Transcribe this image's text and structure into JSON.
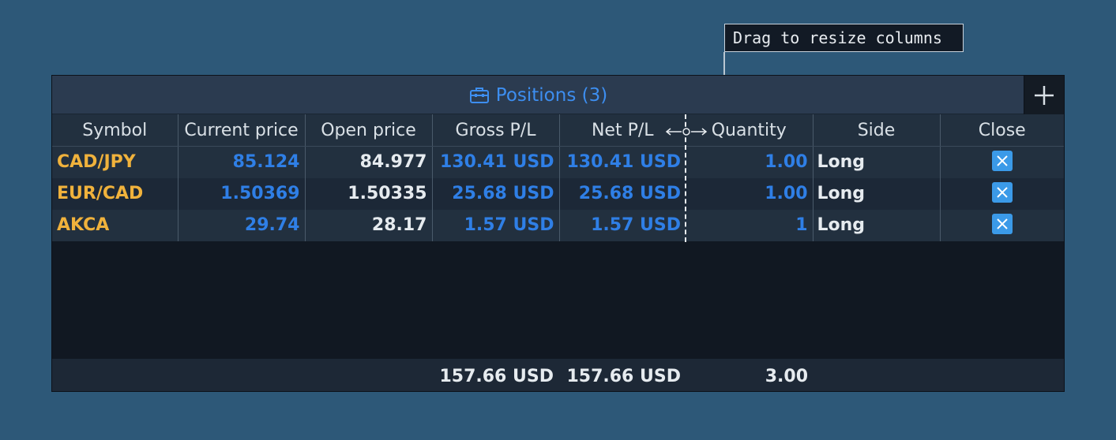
{
  "tooltip": {
    "text": "Drag to resize columns"
  },
  "panel": {
    "title": "Positions (3)",
    "title_icon": "briefcase-icon",
    "add_icon": "plus-icon"
  },
  "columns": [
    "Symbol",
    "Current price",
    "Open price",
    "Gross P/L",
    "Net P/L",
    "Quantity",
    "Side",
    "Close"
  ],
  "rows": [
    {
      "symbol": "CAD/JPY",
      "current_price": "85.124",
      "open_price": "84.977",
      "gross_pl": "130.41 USD",
      "net_pl": "130.41 USD",
      "quantity": "1.00",
      "side": "Long"
    },
    {
      "symbol": "EUR/CAD",
      "current_price": "1.50369",
      "open_price": "1.50335",
      "gross_pl": "25.68 USD",
      "net_pl": "25.68 USD",
      "quantity": "1.00",
      "side": "Long"
    },
    {
      "symbol": "AKCA",
      "current_price": "29.74",
      "open_price": "28.17",
      "gross_pl": "1.57 USD",
      "net_pl": "1.57 USD",
      "quantity": "1",
      "side": "Long"
    }
  ],
  "totals": {
    "gross_pl": "157.66 USD",
    "net_pl": "157.66 USD",
    "quantity": "3.00"
  },
  "colors": {
    "background": "#2d5878",
    "symbol": "#f0b23c",
    "price_blue": "#2f7fe6",
    "accent": "#3d8ef0",
    "close_button": "#3b9ae8"
  }
}
